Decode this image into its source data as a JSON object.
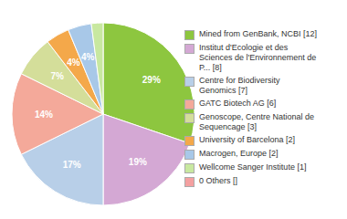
{
  "chart_data": {
    "type": "pie",
    "categories": [
      "Mined from GenBank, NCBI [12]",
      "Institut d'Ecologie et des\nSciences de l'Environnement de\nP... [8]",
      "Centre for Biodiversity\nGenomics [7]",
      "GATC Biotech AG [6]",
      "Genoscope, Centre National de\nSequencage [3]",
      "University of Barcelona [2]",
      "Macrogen, Europe [2]",
      "Wellcome Sanger Institute [1]",
      "0 Others []"
    ],
    "values": [
      29,
      19,
      17,
      14,
      7,
      4,
      4,
      2,
      0
    ],
    "value_labels": [
      "29%",
      "19%",
      "17%",
      "14%",
      "7%",
      "4%",
      "4%",
      null,
      null
    ],
    "colors": [
      "#8dc63f",
      "#d4a8d4",
      "#b8cfe8",
      "#f4a99a",
      "#d4de9a",
      "#f4a84a",
      "#a8c8e8",
      "#c8e8a0",
      "#f4a0a0"
    ],
    "data_labels": true,
    "legend": "right"
  }
}
